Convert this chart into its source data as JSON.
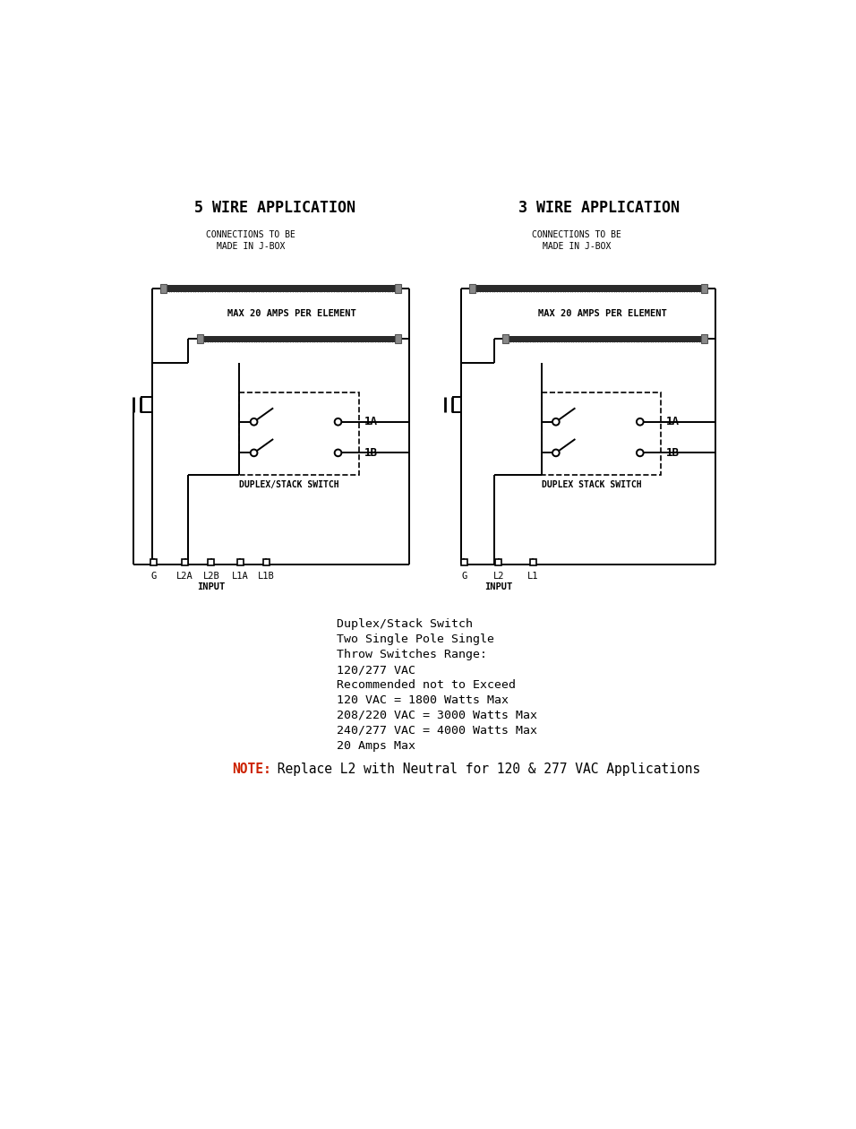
{
  "bg_color": "#ffffff",
  "line_color": "#000000",
  "left_title": "5 WIRE APPLICATION",
  "right_title": "3 WIRE APPLICATION",
  "connections_text": "CONNECTIONS TO BE\nMADE IN J-BOX",
  "max_amps_text": "MAX 20 AMPS PER ELEMENT",
  "duplex_label_left": "DUPLEX/STACK SWITCH",
  "duplex_label_right": "DUPLEX STACK SWITCH",
  "label_1A": "1A",
  "label_1B": "1B",
  "left_terminals": [
    "G",
    "L2A",
    "L2B",
    "L1A",
    "L1B"
  ],
  "right_terminals": [
    "G",
    "L2",
    "L1"
  ],
  "input_label": "INPUT",
  "note_red": "NOTE:",
  "note_black": " Replace L2 with Neutral for 120 & 277 VAC Applications",
  "info_lines": [
    "Duplex/Stack Switch",
    "Two Single Pole Single",
    "Throw Switches Range:",
    "120/277 VAC",
    "Recommended not to Exceed",
    "120 VAC = 1800 Watts Max",
    "208/220 VAC = 3000 Watts Max",
    "240/277 VAC = 4000 Watts Max",
    "20 Amps Max"
  ]
}
